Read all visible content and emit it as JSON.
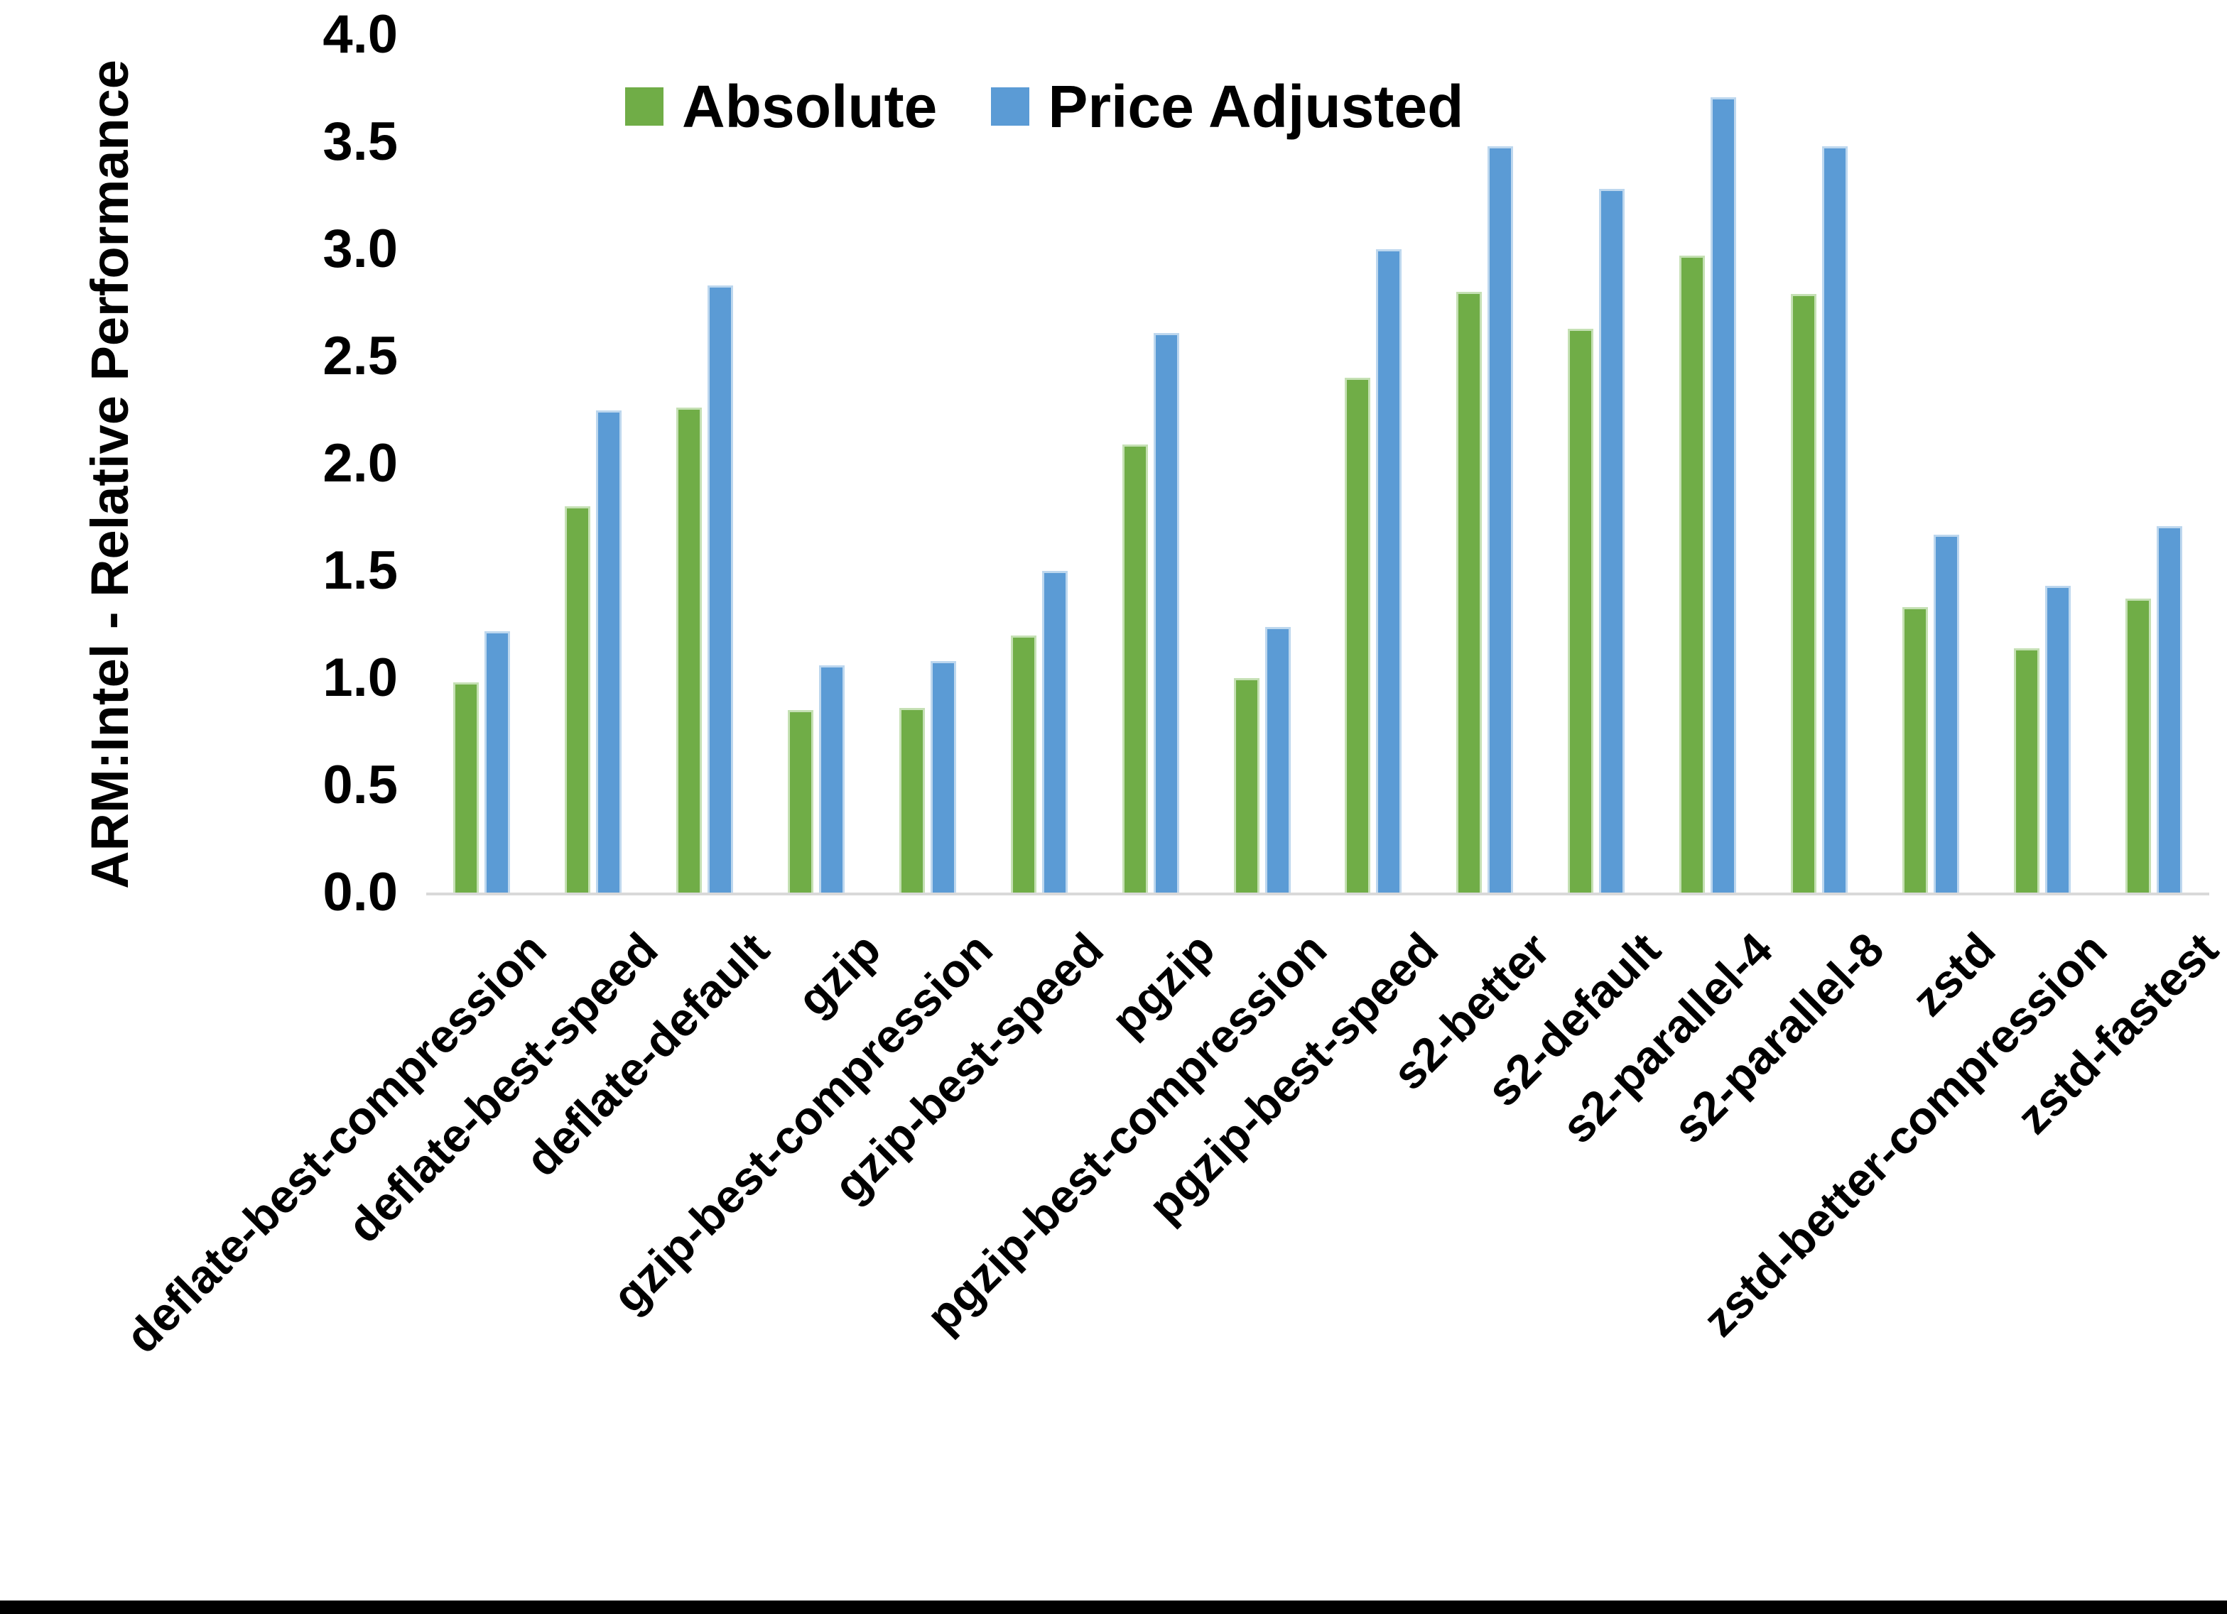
{
  "chart_data": {
    "type": "bar",
    "title": "",
    "xlabel": "",
    "ylabel": "ARM:Intel - Relative Performance",
    "categories": [
      "deflate-best-compression",
      "deflate-best-speed",
      "deflate-default",
      "gzip",
      "gzip-best-compression",
      "gzip-best-speed",
      "pgzip",
      "pgzip-best-compression",
      "pgzip-best-speed",
      "s2-better",
      "s2-default",
      "s2-parallel-4",
      "s2-parallel-8",
      "zstd",
      "zstd-better-compression",
      "zstd-fastest"
    ],
    "series": [
      {
        "name": "Absolute",
        "color": "#70AD47",
        "edge_color": "#C5E0B4",
        "values": [
          0.98,
          1.8,
          2.26,
          0.85,
          0.86,
          1.2,
          2.09,
          1.0,
          2.4,
          2.8,
          2.63,
          2.97,
          2.79,
          1.33,
          1.14,
          1.37
        ]
      },
      {
        "name": "Price Adjusted",
        "color": "#5B9BD5",
        "edge_color": "#BDD7EE",
        "values": [
          1.22,
          2.25,
          2.83,
          1.06,
          1.08,
          1.5,
          2.61,
          1.24,
          3.0,
          3.48,
          3.28,
          3.71,
          3.48,
          1.67,
          1.43,
          1.71
        ]
      }
    ],
    "ylim": [
      0,
      4
    ],
    "ytick_step": 0.5,
    "ytick_labels": [
      "0.0",
      "0.5",
      "1.0",
      "1.5",
      "2.0",
      "2.5",
      "3.0",
      "3.5",
      "4.0"
    ],
    "grid": false,
    "legend_position": "top-center",
    "axis_line_color": "#D9D9D9",
    "text_color": "#000000",
    "background_color": "#FFFFFF",
    "bottom_edge_bar_color": "#000000",
    "x_label_rotation_deg": -45
  }
}
